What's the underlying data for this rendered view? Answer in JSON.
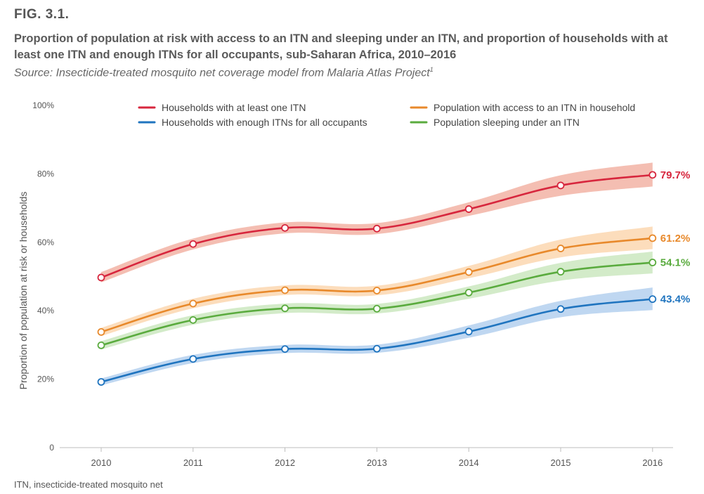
{
  "figure_label": "FIG. 3.1.",
  "title": "Proportion of population at risk with access to an ITN and sleeping under an ITN, and proportion of households with at least one ITN and enough ITNs for all occupants, sub-Saharan Africa, 2010–2016",
  "source": "Source: Insecticide-treated mosquito net coverage model from Malaria Atlas Project",
  "source_superscript": "1",
  "footnote": "ITN, insecticide-treated mosquito net",
  "chart_data": {
    "type": "line",
    "title": "",
    "xlabel": "",
    "ylabel": "Proportion of population at risk or households",
    "x": [
      "2010",
      "2011",
      "2012",
      "2013",
      "2014",
      "2015",
      "2016"
    ],
    "ylim": [
      0,
      100
    ],
    "y_ticks": [
      {
        "value": 0,
        "label": "0"
      },
      {
        "value": 20,
        "label": "20%"
      },
      {
        "value": 40,
        "label": "40%"
      },
      {
        "value": 60,
        "label": "60%"
      },
      {
        "value": 80,
        "label": "80%"
      },
      {
        "value": 100,
        "label": "100%"
      }
    ],
    "grid": false,
    "legend_position": "top",
    "series": [
      {
        "name": "Households with at least one ITN",
        "color": "#d7263d",
        "band_color": "#f2b3a4",
        "values": [
          49.7,
          59.5,
          64.2,
          64.0,
          69.7,
          76.6,
          79.7
        ],
        "lower": [
          48.3,
          57.9,
          62.6,
          62.4,
          67.7,
          73.6,
          76.3
        ],
        "upper": [
          51.3,
          61.1,
          65.8,
          65.6,
          71.7,
          79.6,
          83.3
        ],
        "end_label": "79.7%"
      },
      {
        "name": "Population with access to an ITN in household",
        "color": "#e8892b",
        "band_color": "#fbd7b0",
        "values": [
          33.8,
          42.1,
          46.0,
          45.9,
          51.3,
          58.2,
          61.2
        ],
        "lower": [
          32.6,
          40.7,
          44.6,
          44.5,
          49.5,
          55.6,
          58.0
        ],
        "upper": [
          35.0,
          43.5,
          47.4,
          47.3,
          53.1,
          60.8,
          64.6
        ],
        "end_label": "61.2%"
      },
      {
        "name": "Households with enough ITNs for all occupants",
        "color": "#1f74bf",
        "band_color": "#b4d0ef",
        "values": [
          19.2,
          25.9,
          28.8,
          28.9,
          33.9,
          40.5,
          43.4
        ],
        "lower": [
          18.2,
          24.7,
          27.6,
          27.7,
          32.1,
          38.1,
          40.2
        ],
        "upper": [
          20.2,
          27.1,
          30.0,
          30.1,
          35.7,
          42.9,
          46.8
        ],
        "end_label": "43.4%"
      },
      {
        "name": "Population sleeping under an ITN",
        "color": "#5aab3e",
        "band_color": "#cbe8bf",
        "values": [
          29.9,
          37.3,
          40.7,
          40.6,
          45.3,
          51.4,
          54.1
        ],
        "lower": [
          28.7,
          35.9,
          39.3,
          39.2,
          43.5,
          48.8,
          50.9
        ],
        "upper": [
          31.1,
          38.7,
          42.1,
          42.0,
          47.1,
          54.0,
          57.3
        ],
        "end_label": "54.1%"
      }
    ]
  }
}
